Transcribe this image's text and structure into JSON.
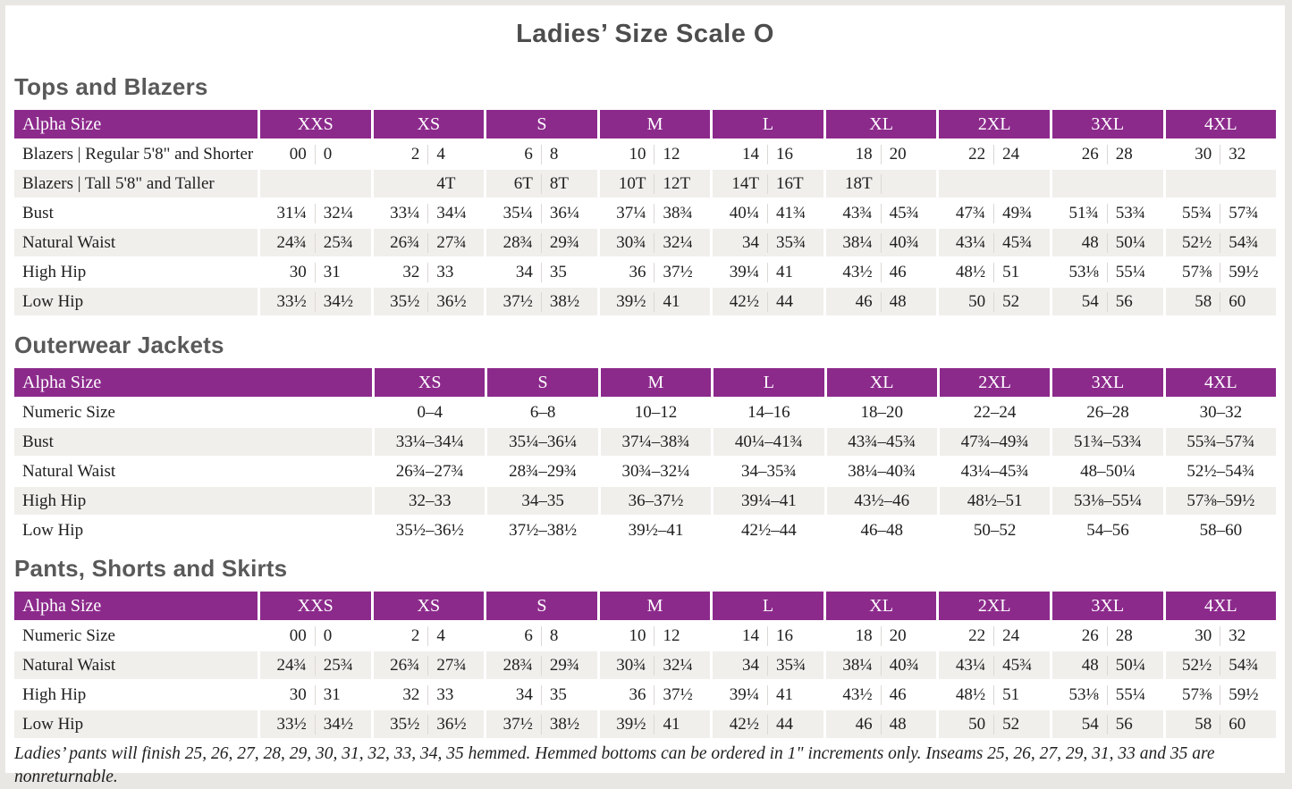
{
  "title": "Ladies’ Size Scale O",
  "colors": {
    "header_purple": "#8c2a8c",
    "stripe_gray": "#f1efec",
    "frame_gray": "#e9e7e4",
    "heading_gray": "#595959"
  },
  "tables": [
    {
      "heading": "Tops and Blazers",
      "header_label": "Alpha Size",
      "wide_label": false,
      "columns": [
        "XXS",
        "XS",
        "S",
        "M",
        "L",
        "XL",
        "2XL",
        "3XL",
        "4XL"
      ],
      "rows": [
        {
          "label": "Blazers  |  Regular 5'8\" and Shorter",
          "values": [
            [
              "00",
              "0"
            ],
            [
              "2",
              "4"
            ],
            [
              "6",
              "8"
            ],
            [
              "10",
              "12"
            ],
            [
              "14",
              "16"
            ],
            [
              "18",
              "20"
            ],
            [
              "22",
              "24"
            ],
            [
              "26",
              "28"
            ],
            [
              "30",
              "32"
            ]
          ]
        },
        {
          "label": "Blazers  |  Tall 5'8\" and Taller",
          "values": [
            [
              "",
              ""
            ],
            [
              "",
              "4T"
            ],
            [
              "6T",
              "8T"
            ],
            [
              "10T",
              "12T"
            ],
            [
              "14T",
              "16T"
            ],
            [
              "18T",
              ""
            ],
            [
              "",
              ""
            ],
            [
              "",
              ""
            ],
            [
              "",
              ""
            ]
          ]
        },
        {
          "label": "Bust",
          "values": [
            [
              "31¼",
              "32¼"
            ],
            [
              "33¼",
              "34¼"
            ],
            [
              "35¼",
              "36¼"
            ],
            [
              "37¼",
              "38¾"
            ],
            [
              "40¼",
              "41¾"
            ],
            [
              "43¾",
              "45¾"
            ],
            [
              "47¾",
              "49¾"
            ],
            [
              "51¾",
              "53¾"
            ],
            [
              "55¾",
              "57¾"
            ]
          ]
        },
        {
          "label": "Natural Waist",
          "values": [
            [
              "24¾",
              "25¾"
            ],
            [
              "26¾",
              "27¾"
            ],
            [
              "28¾",
              "29¾"
            ],
            [
              "30¾",
              "32¼"
            ],
            [
              "34",
              "35¾"
            ],
            [
              "38¼",
              "40¾"
            ],
            [
              "43¼",
              "45¾"
            ],
            [
              "48",
              "50¼"
            ],
            [
              "52½",
              "54¾"
            ]
          ]
        },
        {
          "label": "High Hip",
          "values": [
            [
              "30",
              "31"
            ],
            [
              "32",
              "33"
            ],
            [
              "34",
              "35"
            ],
            [
              "36",
              "37½"
            ],
            [
              "39¼",
              "41"
            ],
            [
              "43½",
              "46"
            ],
            [
              "48½",
              "51"
            ],
            [
              "53⅛",
              "55¼"
            ],
            [
              "57⅜",
              "59½"
            ]
          ]
        },
        {
          "label": "Low Hip",
          "values": [
            [
              "33½",
              "34½"
            ],
            [
              "35½",
              "36½"
            ],
            [
              "37½",
              "38½"
            ],
            [
              "39½",
              "41"
            ],
            [
              "42½",
              "44"
            ],
            [
              "46",
              "48"
            ],
            [
              "50",
              "52"
            ],
            [
              "54",
              "56"
            ],
            [
              "58",
              "60"
            ]
          ]
        }
      ]
    },
    {
      "heading": "Outerwear Jackets",
      "header_label": "Alpha Size",
      "wide_label": true,
      "columns": [
        "XS",
        "S",
        "M",
        "L",
        "XL",
        "2XL",
        "3XL",
        "4XL"
      ],
      "rows": [
        {
          "label": "Numeric Size",
          "values": [
            "0–4",
            "6–8",
            "10–12",
            "14–16",
            "18–20",
            "22–24",
            "26–28",
            "30–32"
          ]
        },
        {
          "label": "Bust",
          "values": [
            "33¼–34¼",
            "35¼–36¼",
            "37¼–38¾",
            "40¼–41¾",
            "43¾–45¾",
            "47¾–49¾",
            "51¾–53¾",
            "55¾–57¾"
          ]
        },
        {
          "label": "Natural Waist",
          "values": [
            "26¾–27¾",
            "28¾–29¾",
            "30¾–32¼",
            "34–35¾",
            "38¼–40¾",
            "43¼–45¾",
            "48–50¼",
            "52½–54¾"
          ]
        },
        {
          "label": "High Hip",
          "values": [
            "32–33",
            "34–35",
            "36–37½",
            "39¼–41",
            "43½–46",
            "48½–51",
            "53⅛–55¼",
            "57⅜–59½"
          ]
        },
        {
          "label": "Low Hip",
          "values": [
            "35½–36½",
            "37½–38½",
            "39½–41",
            "42½–44",
            "46–48",
            "50–52",
            "54–56",
            "58–60"
          ]
        }
      ]
    },
    {
      "heading": "Pants, Shorts and Skirts",
      "header_label": "Alpha Size",
      "wide_label": false,
      "columns": [
        "XXS",
        "XS",
        "S",
        "M",
        "L",
        "XL",
        "2XL",
        "3XL",
        "4XL"
      ],
      "rows": [
        {
          "label": "Numeric Size",
          "values": [
            [
              "00",
              "0"
            ],
            [
              "2",
              "4"
            ],
            [
              "6",
              "8"
            ],
            [
              "10",
              "12"
            ],
            [
              "14",
              "16"
            ],
            [
              "18",
              "20"
            ],
            [
              "22",
              "24"
            ],
            [
              "26",
              "28"
            ],
            [
              "30",
              "32"
            ]
          ]
        },
        {
          "label": "Natural Waist",
          "values": [
            [
              "24¾",
              "25¾"
            ],
            [
              "26¾",
              "27¾"
            ],
            [
              "28¾",
              "29¾"
            ],
            [
              "30¾",
              "32¼"
            ],
            [
              "34",
              "35¾"
            ],
            [
              "38¼",
              "40¾"
            ],
            [
              "43¼",
              "45¾"
            ],
            [
              "48",
              "50¼"
            ],
            [
              "52½",
              "54¾"
            ]
          ]
        },
        {
          "label": "High Hip",
          "values": [
            [
              "30",
              "31"
            ],
            [
              "32",
              "33"
            ],
            [
              "34",
              "35"
            ],
            [
              "36",
              "37½"
            ],
            [
              "39¼",
              "41"
            ],
            [
              "43½",
              "46"
            ],
            [
              "48½",
              "51"
            ],
            [
              "53⅛",
              "55¼"
            ],
            [
              "57⅜",
              "59½"
            ]
          ]
        },
        {
          "label": "Low Hip",
          "values": [
            [
              "33½",
              "34½"
            ],
            [
              "35½",
              "36½"
            ],
            [
              "37½",
              "38½"
            ],
            [
              "39½",
              "41"
            ],
            [
              "42½",
              "44"
            ],
            [
              "46",
              "48"
            ],
            [
              "50",
              "52"
            ],
            [
              "54",
              "56"
            ],
            [
              "58",
              "60"
            ]
          ]
        }
      ]
    }
  ],
  "footnote": "Ladies’ pants will finish 25, 26, 27, 28, 29, 30, 31, 32, 33, 34, 35 hemmed. Hemmed bottoms can be ordered in 1\" increments only. Inseams 25, 26, 27, 29, 31, 33 and 35 are nonreturnable."
}
